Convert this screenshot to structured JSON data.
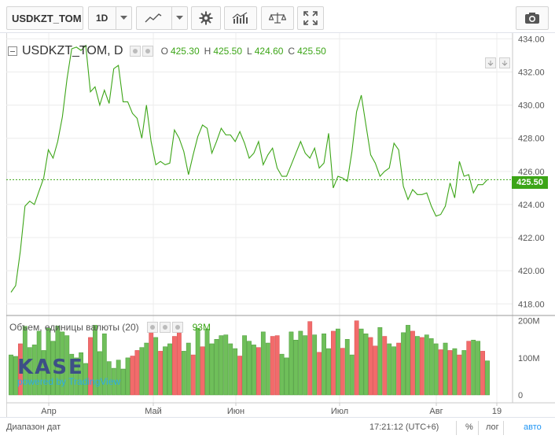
{
  "toolbar": {
    "symbol": "USDKZT_TOM",
    "interval": "1D",
    "icons": [
      "line-chart-icon",
      "gear-icon",
      "indicators-icon",
      "compare-icon",
      "fullscreen-icon",
      "camera-icon"
    ]
  },
  "legend": {
    "title": "USDKZT_TOM, D",
    "ohlc": [
      {
        "key": "O",
        "value": "425.30"
      },
      {
        "key": "H",
        "value": "425.50"
      },
      {
        "key": "L",
        "value": "424.60"
      },
      {
        "key": "C",
        "value": "425.50"
      }
    ]
  },
  "volume_legend": {
    "title": "Объем, единицы валюты (20)",
    "value": "93M"
  },
  "price_tag": "425.50",
  "logo": {
    "text": "KASE",
    "powered": "powered by TradingView"
  },
  "bottom": {
    "range_label": "Диапазон дат",
    "time": "17:21:12 (UTC+6)",
    "percent": "%",
    "log": "лог",
    "auto": "авто"
  },
  "colors": {
    "line": "#3ca517",
    "up": "#6fbf5a",
    "down": "#f26b6b",
    "grid": "#ececec",
    "accent": "#3ca517"
  },
  "chart_data": [
    {
      "type": "line",
      "title": "USDKZT_TOM, D",
      "series": [
        {
          "name": "USDKZT_TOM",
          "values": [
            418.7,
            419.1,
            421.2,
            423.9,
            424.2,
            424.0,
            424.8,
            425.6,
            427.3,
            426.8,
            427.8,
            429.3,
            431.6,
            433.4,
            433.5,
            433.3,
            433.6,
            430.8,
            431.1,
            430.0,
            430.9,
            430.1,
            432.2,
            432.4,
            430.2,
            430.2,
            429.5,
            429.2,
            428.0,
            430.0,
            427.8,
            426.4,
            426.6,
            426.4,
            426.5,
            428.5,
            428.0,
            427.2,
            425.8,
            427.0,
            428.1,
            428.8,
            428.6,
            427.1,
            427.8,
            428.6,
            428.2,
            428.2,
            427.8,
            428.4,
            427.7,
            426.8,
            427.1,
            427.8,
            426.4,
            427.0,
            427.4,
            426.2,
            425.7,
            425.7,
            426.4,
            427.1,
            427.8,
            427.1,
            426.8,
            427.4,
            426.2,
            426.5,
            428.3,
            425.0,
            425.7,
            425.6,
            425.4,
            427.2,
            429.6,
            430.6,
            428.8,
            427.0,
            426.5,
            425.7,
            426.0,
            426.2,
            427.7,
            427.3,
            425.1,
            424.3,
            424.9,
            424.6,
            424.6,
            424.7,
            423.9,
            423.3,
            423.4,
            423.9,
            425.3,
            424.4,
            426.6,
            425.7,
            425.8,
            424.7,
            425.2,
            425.2,
            425.5
          ]
        }
      ],
      "x_tick_labels": [
        "Апр",
        "Май",
        "Июн",
        "Июл",
        "Авг",
        "19"
      ],
      "y_ticks": [
        418.0,
        420.0,
        422.0,
        424.0,
        426.0,
        428.0,
        430.0,
        432.0,
        434.0
      ],
      "ylim": [
        417.3,
        434.35
      ],
      "last_price_line": 425.5,
      "grid": true
    },
    {
      "type": "bar",
      "title": "Объем, единицы валюты (20)",
      "series": [
        {
          "name": "Volume",
          "values": [
            108,
            104,
            138,
            185,
            128,
            135,
            172,
            120,
            180,
            145,
            186,
            170,
            160,
            110,
            100,
            114,
            85,
            155,
            188,
            117,
            165,
            90,
            72,
            94,
            70,
            100,
            105,
            120,
            128,
            140,
            195,
            155,
            118,
            130,
            138,
            158,
            172,
            118,
            140,
            108,
            180,
            130,
            178,
            138,
            150,
            160,
            162,
            138,
            125,
            105,
            160,
            145,
            135,
            128,
            170,
            140,
            158,
            160,
            110,
            100,
            170,
            148,
            172,
            160,
            198,
            162,
            115,
            165,
            125,
            172,
            178,
            126,
            150,
            108,
            200,
            178,
            165,
            155,
            132,
            182,
            158,
            138,
            130,
            140,
            168,
            188,
            172,
            158,
            155,
            162,
            152,
            138,
            122,
            140,
            120,
            125,
            108,
            120,
            145,
            148,
            145,
            118,
            92
          ],
          "up": [
            1,
            1,
            0,
            1,
            1,
            1,
            1,
            1,
            1,
            1,
            1,
            1,
            1,
            1,
            1,
            1,
            1,
            0,
            1,
            1,
            1,
            1,
            1,
            1,
            1,
            1,
            0,
            0,
            1,
            1,
            0,
            1,
            0,
            1,
            1,
            0,
            0,
            1,
            1,
            0,
            1,
            0,
            1,
            1,
            1,
            1,
            1,
            1,
            1,
            0,
            1,
            1,
            1,
            0,
            1,
            1,
            0,
            0,
            1,
            1,
            1,
            1,
            1,
            1,
            0,
            1,
            0,
            1,
            1,
            0,
            1,
            0,
            1,
            1,
            0,
            1,
            1,
            0,
            0,
            1,
            0,
            1,
            1,
            0,
            1,
            1,
            0,
            1,
            0,
            1,
            1,
            1,
            0,
            1,
            0,
            1,
            0,
            1,
            0,
            1,
            1,
            0,
            1
          ]
        }
      ],
      "y_tick_labels": [
        "0",
        "100M",
        "200M"
      ],
      "ylim": [
        0,
        210
      ]
    }
  ]
}
